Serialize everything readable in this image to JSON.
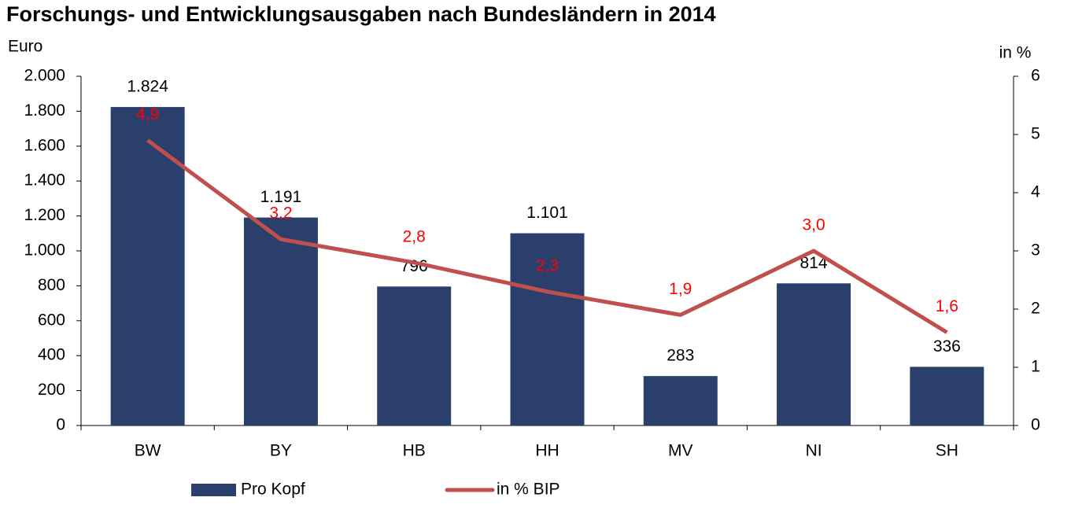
{
  "chart_data": {
    "type": "bar",
    "title": "Forschungs- und Entwicklungsausgaben nach Bundesländern in 2014",
    "y_label": "Euro",
    "y2_label": "in %",
    "categories": [
      "BW",
      "BY",
      "HB",
      "HH",
      "MV",
      "NI",
      "SH"
    ],
    "series": [
      {
        "name": "Pro Kopf",
        "type": "bar",
        "color": "#2a3f6b",
        "values": [
          1824,
          1191,
          796,
          1101,
          283,
          814,
          336
        ],
        "value_labels": [
          "1.824",
          "1.191",
          "796",
          "1.101",
          "283",
          "814",
          "336"
        ]
      },
      {
        "name": "in % BIP",
        "type": "line",
        "axis": "y2",
        "color": "#c0504d",
        "label_color": "#ff0000",
        "values": [
          4.9,
          3.2,
          2.8,
          2.3,
          1.9,
          3.0,
          1.6
        ],
        "value_labels": [
          "4,9",
          "3,2",
          "2,8",
          "2,3",
          "1,9",
          "3,0",
          "1,6"
        ]
      }
    ],
    "ylim": [
      0,
      2000
    ],
    "yticks": [
      0,
      200,
      400,
      600,
      800,
      {
        "value": 1000,
        "label": "1.000"
      },
      {
        "value": 1200,
        "label": "1.200"
      },
      {
        "value": 1400,
        "label": "1.400"
      },
      {
        "value": 1600,
        "label": "1.600"
      },
      {
        "value": 1800,
        "label": "1.800"
      },
      {
        "value": 2000,
        "label": "2.000"
      }
    ],
    "y2lim": [
      0,
      6
    ],
    "y2ticks": [
      0,
      1,
      2,
      3,
      4,
      5,
      6
    ],
    "grid": false
  }
}
